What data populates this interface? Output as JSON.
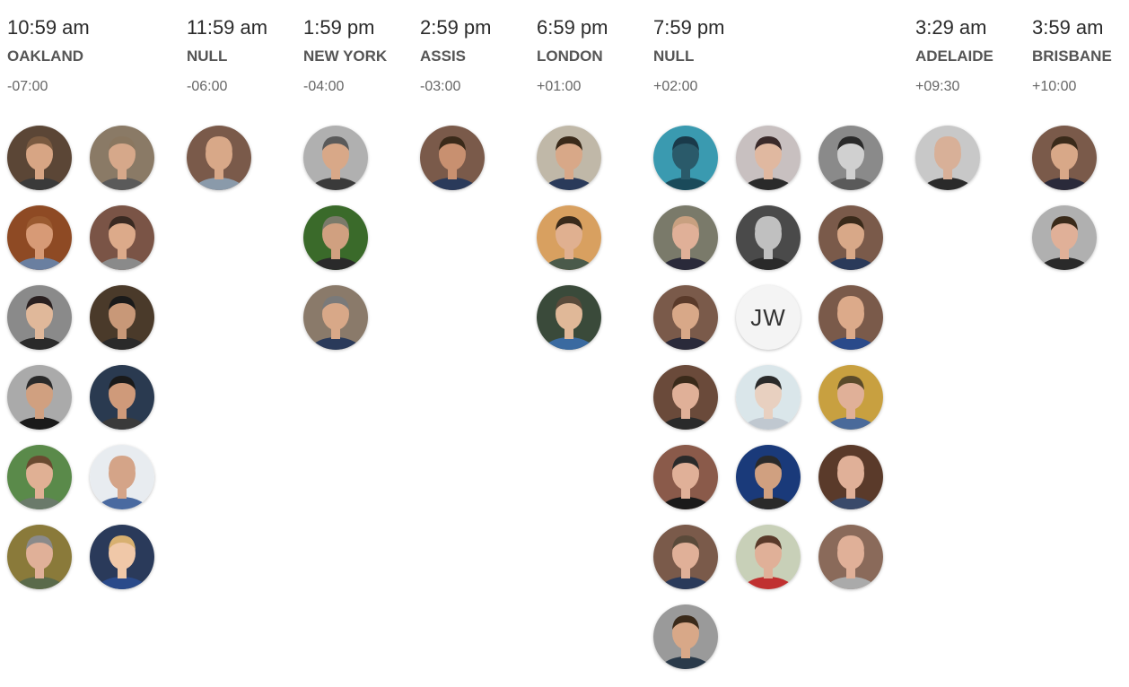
{
  "zones": [
    {
      "time": "10:59 am",
      "city": "OAKLAND",
      "offset": "-07:00",
      "members": [
        {
          "photo": {
            "bg": "#5b4636",
            "skin": "#d7a584",
            "hair": "#7a5a40",
            "shirt": "#3a3a3a"
          }
        },
        {
          "photo": {
            "bg": "#8a7a66",
            "skin": "#d6a88a",
            "hair": "#8a7760",
            "shirt": "#5a5a5a"
          }
        },
        {
          "photo": {
            "bg": "#8e4a24",
            "skin": "#d79a76",
            "hair": "#9a5a30",
            "shirt": "#6a7fa0"
          }
        },
        {
          "photo": {
            "bg": "#7a5446",
            "skin": "#dcaa8a",
            "hair": "#3a2a22",
            "shirt": "#8a8a8a"
          }
        },
        {
          "photo": {
            "bg": "#8a8a8a",
            "skin": "#e0b89a",
            "hair": "#2a2020",
            "shirt": "#2a2a2a"
          }
        },
        {
          "photo": {
            "bg": "#4a3a2a",
            "skin": "#c89878",
            "hair": "#1a1a1a",
            "shirt": "#2a2a2a"
          }
        },
        {
          "photo": {
            "bg": "#aaaaaa",
            "skin": "#d0a080",
            "hair": "#2a2a2a",
            "shirt": "#1a1a1a"
          }
        },
        {
          "photo": {
            "bg": "#2a3a50",
            "skin": "#cf9a7a",
            "hair": "#1a1a1a",
            "shirt": "#3a3a3a"
          }
        },
        {
          "photo": {
            "bg": "#5a8a4a",
            "skin": "#e0b094",
            "hair": "#6a4a30",
            "shirt": "#6a7a6a"
          }
        },
        {
          "photo": {
            "bg": "#e8ecf0",
            "skin": "#d4a488",
            "hair": "#d4a488",
            "shirt": "#4a6aa0"
          }
        },
        {
          "photo": {
            "bg": "#8a7a3a",
            "skin": "#e0b098",
            "hair": "#8a8a8a",
            "shirt": "#5a6a4a"
          }
        },
        {
          "photo": {
            "bg": "#2a3a5a",
            "skin": "#f0c8a8",
            "hair": "#d8b070",
            "shirt": "#2a4a8a"
          }
        }
      ]
    },
    {
      "time": "11:59 am",
      "city": "NULL",
      "offset": "-06:00",
      "members": [
        {
          "photo": {
            "bg": "#7a5a4a",
            "skin": "#d8a888",
            "hair": "#d8a888",
            "shirt": "#8a9aaa"
          }
        }
      ]
    },
    {
      "time": "1:59 pm",
      "city": "NEW YORK",
      "offset": "-04:00",
      "members": [
        {
          "photo": {
            "bg": "#b0b0b0",
            "skin": "#d8a888",
            "hair": "#5a5a5a",
            "shirt": "#3a3a3a"
          }
        },
        {
          "photo": {
            "bg": "#3a6a2a",
            "skin": "#d0a080",
            "hair": "#7a7a6a",
            "shirt": "#2a2a2a"
          }
        },
        {
          "photo": {
            "bg": "#8a7a6a",
            "skin": "#d8a888",
            "hair": "#7a7a7a",
            "shirt": "#2a3a5a"
          }
        }
      ]
    },
    {
      "time": "2:59 pm",
      "city": "ASSIS",
      "offset": "-03:00",
      "members": [
        {
          "photo": {
            "bg": "#7a5a4a",
            "skin": "#c89070",
            "hair": "#3a2a1a",
            "shirt": "#2a3a5a"
          }
        }
      ]
    },
    {
      "time": "6:59 pm",
      "city": "LONDON",
      "offset": "+01:00",
      "members": [
        {
          "photo": {
            "bg": "#c0b8a8",
            "skin": "#d8a888",
            "hair": "#3a2a1a",
            "shirt": "#2a3a5a"
          }
        },
        {
          "photo": {
            "bg": "#d8a060",
            "skin": "#e0b090",
            "hair": "#3a2a1a",
            "shirt": "#4a5a4a"
          }
        },
        {
          "photo": {
            "bg": "#3a4a3a",
            "skin": "#e0b898",
            "hair": "#5a4a3a",
            "shirt": "#3a6aa0"
          }
        }
      ]
    },
    {
      "time": "7:59 pm",
      "city": "NULL",
      "offset": "+02:00",
      "members": [
        {
          "photo": {
            "bg": "#3a9ab0",
            "skin": "#2a5a6a",
            "hair": "#1a3a4a",
            "shirt": "#1a4a5a"
          }
        },
        {
          "photo": {
            "bg": "#c8c0c0",
            "skin": "#e0b8a0",
            "hair": "#3a2a2a",
            "shirt": "#2a2a2a"
          }
        },
        {
          "photo": {
            "bg": "#8a8a8a",
            "skin": "#d0d0d0",
            "hair": "#2a2a2a",
            "shirt": "#5a5a5a"
          }
        },
        {
          "photo": {
            "bg": "#7a7a6a",
            "skin": "#e0b098",
            "hair": "#c8a080",
            "shirt": "#2a2a3a"
          }
        },
        {
          "photo": {
            "bg": "#4a4a4a",
            "skin": "#c0c0c0",
            "hair": "#c0c0c0",
            "shirt": "#2a2a2a"
          }
        },
        {
          "photo": {
            "bg": "#7a5a4a",
            "skin": "#d8a888",
            "hair": "#3a2a1a",
            "shirt": "#2a3a5a"
          }
        },
        {
          "photo": {
            "bg": "#7a5a4a",
            "skin": "#d8a888",
            "hair": "#5a3a2a",
            "shirt": "#2a2a3a"
          }
        },
        {
          "photo": {
            "bg": "#7a5a4a",
            "skin": "#dcaa8a",
            "hair": "#dcaa8a",
            "shirt": "#2a4a8a"
          }
        },
        {
          "photo": {
            "bg": "#6a4a3a",
            "skin": "#e0b098",
            "hair": "#3a2a1a",
            "shirt": "#2a2a2a"
          }
        },
        {
          "photo": {
            "bg": "#dae6ea",
            "skin": "#e8d0c0",
            "hair": "#2a2a2a",
            "shirt": "#c0c8d0"
          }
        },
        {
          "photo": {
            "bg": "#c8a040",
            "skin": "#e0b098",
            "hair": "#5a4a2a",
            "shirt": "#4a6a9a"
          }
        },
        {
          "photo": {
            "bg": "#8a5a4a",
            "skin": "#e0b098",
            "hair": "#2a2a2a",
            "shirt": "#1a1a1a"
          }
        },
        {
          "photo": {
            "bg": "#1a3a7a",
            "skin": "#d0a080",
            "hair": "#2a2a2a",
            "shirt": "#2a2a2a"
          }
        },
        {
          "photo": {
            "bg": "#5a3a2a",
            "skin": "#e0b098",
            "hair": "#e0b098",
            "shirt": "#3a4a6a"
          }
        },
        {
          "photo": {
            "bg": "#7a5a4a",
            "skin": "#e0b098",
            "hair": "#5a4a3a",
            "shirt": "#2a3a5a"
          }
        },
        {
          "photo": {
            "bg": "#c8d0b8",
            "skin": "#e0b098",
            "hair": "#5a3a2a",
            "shirt": "#c03030"
          }
        },
        {
          "photo": {
            "bg": "#8a6a5a",
            "skin": "#e0b098",
            "hair": "#e0b098",
            "shirt": "#aaaaaa"
          }
        },
        {
          "photo": {
            "bg": "#9a9a9a",
            "skin": "#d8a888",
            "hair": "#3a2a1a",
            "shirt": "#2a3a4a"
          }
        }
      ]
    },
    {
      "time": "3:29 am",
      "city": "ADELAIDE",
      "offset": "+09:30",
      "members": [
        {
          "photo": {
            "bg": "#c8c8c8",
            "skin": "#d8b098",
            "hair": "#d8b098",
            "shirt": "#2a2a2a"
          }
        }
      ]
    },
    {
      "time": "3:59 am",
      "city": "BRISBANE",
      "offset": "+10:00",
      "members": [
        {
          "photo": {
            "bg": "#7a5a4a",
            "skin": "#d8a888",
            "hair": "#3a2a1a",
            "shirt": "#2a2a3a"
          }
        },
        {
          "photo": {
            "bg": "#b0b0b0",
            "skin": "#e0b098",
            "hair": "#3a2a1a",
            "shirt": "#2a2a2a"
          }
        }
      ]
    }
  ],
  "initials_avatar": {
    "initials": "JW"
  }
}
